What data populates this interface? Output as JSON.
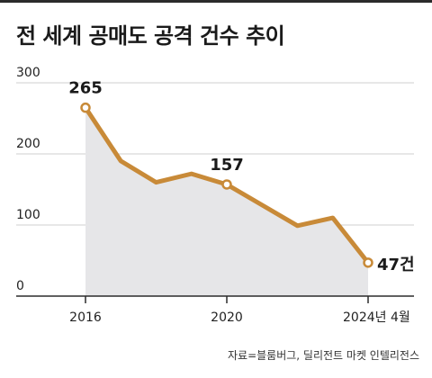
{
  "title": "전 세계 공매도 공격 건수 추이",
  "source": "자료=블룸버그, 딜리전트 마켓 인텔리전스",
  "colors": {
    "line": "#c88a38",
    "area": "#e6e6e8",
    "grid": "#cfcfcf",
    "axis": "#2b2b2b",
    "text": "#222222"
  },
  "chart_data": {
    "type": "area",
    "title": "전 세계 공매도 공격 건수 추이",
    "x": [
      2016,
      2017,
      2018,
      2019,
      2020,
      2021,
      2022,
      2023,
      2024
    ],
    "x_tick_labels": [
      {
        "x": 2016,
        "label": "2016"
      },
      {
        "x": 2020,
        "label": "2020"
      },
      {
        "x": 2024,
        "label": "2024년 4월"
      }
    ],
    "y_ticks": [
      {
        "value": 0,
        "label": "0"
      },
      {
        "value": 100,
        "label": "100"
      },
      {
        "value": 200,
        "label": "200"
      },
      {
        "value": 300,
        "label": "300"
      }
    ],
    "series": [
      {
        "values": [
          265,
          190,
          160,
          172,
          157,
          128,
          99,
          110,
          47
        ]
      }
    ],
    "data_labels": [
      {
        "index": 0,
        "text": "265"
      },
      {
        "index": 4,
        "text": "157"
      },
      {
        "index": 8,
        "text": "47건"
      }
    ],
    "ylim": [
      0,
      300
    ],
    "grid": true,
    "xlabel": "",
    "ylabel": ""
  }
}
